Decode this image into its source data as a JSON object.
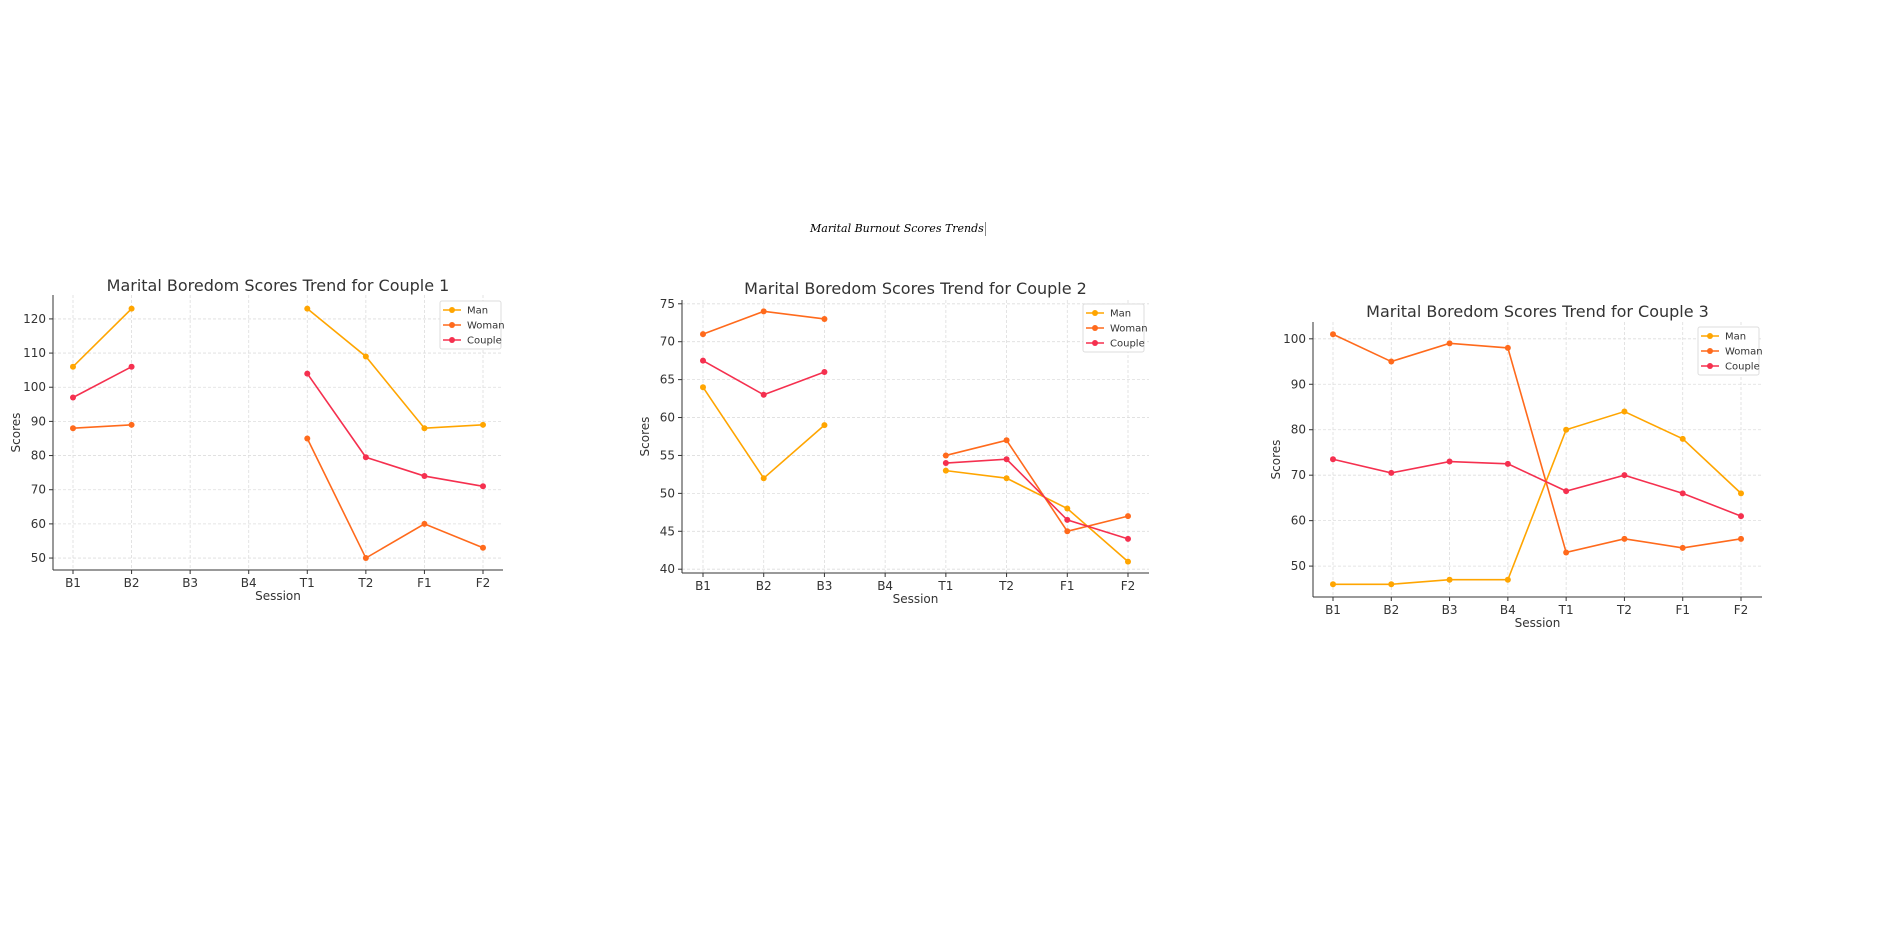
{
  "page_title": "Marital Burnout Scores Trends",
  "colors": {
    "Man": "#ffa500",
    "Woman": "#ff6a1c",
    "Couple": "#f5304f"
  },
  "chart_data": [
    {
      "type": "line",
      "title": "Marital Boredom Scores Trend for Couple 1",
      "xlabel": "Session",
      "ylabel": "Scores",
      "categories": [
        "B1",
        "B2",
        "B3",
        "B4",
        "T1",
        "T2",
        "F1",
        "F2"
      ],
      "ylim": [
        46.5,
        127
      ],
      "yticks": [
        50,
        60,
        70,
        80,
        90,
        100,
        110,
        120
      ],
      "grid": true,
      "legend": "top-right",
      "series": [
        {
          "name": "Man",
          "values": [
            106,
            123,
            null,
            null,
            123,
            109,
            88,
            89
          ]
        },
        {
          "name": "Woman",
          "values": [
            88,
            89,
            null,
            null,
            85,
            50,
            60,
            53
          ]
        },
        {
          "name": "Couple",
          "values": [
            97,
            106,
            null,
            null,
            104,
            79.5,
            74,
            71
          ]
        }
      ]
    },
    {
      "type": "line",
      "title": "Marital Boredom Scores Trend for Couple 2",
      "xlabel": "Session",
      "ylabel": "Scores",
      "categories": [
        "B1",
        "B2",
        "B3",
        "B4",
        "T1",
        "T2",
        "F1",
        "F2"
      ],
      "ylim": [
        39.5,
        75.5
      ],
      "yticks": [
        40,
        45,
        50,
        55,
        60,
        65,
        70,
        75
      ],
      "grid": true,
      "legend": "top-right",
      "series": [
        {
          "name": "Man",
          "values": [
            64,
            52,
            59,
            null,
            53,
            52,
            48,
            41
          ]
        },
        {
          "name": "Woman",
          "values": [
            71,
            74,
            73,
            null,
            55,
            57,
            45,
            47
          ]
        },
        {
          "name": "Couple",
          "values": [
            67.5,
            63,
            66,
            null,
            54,
            54.5,
            46.5,
            44
          ]
        }
      ]
    },
    {
      "type": "line",
      "title": "Marital Boredom Scores Trend for Couple 3",
      "xlabel": "Session",
      "ylabel": "Scores",
      "categories": [
        "B1",
        "B2",
        "B3",
        "B4",
        "T1",
        "T2",
        "F1",
        "F2"
      ],
      "ylim": [
        43.2,
        103.7
      ],
      "yticks": [
        50,
        60,
        70,
        80,
        90,
        100
      ],
      "grid": true,
      "legend": "top-right",
      "series": [
        {
          "name": "Man",
          "values": [
            46,
            46,
            47,
            47,
            80,
            84,
            78,
            66
          ]
        },
        {
          "name": "Woman",
          "values": [
            101,
            95,
            99,
            98,
            53,
            56,
            54,
            56
          ]
        },
        {
          "name": "Couple",
          "values": [
            73.5,
            70.5,
            73,
            72.5,
            66.5,
            70,
            66,
            61
          ]
        }
      ]
    }
  ]
}
